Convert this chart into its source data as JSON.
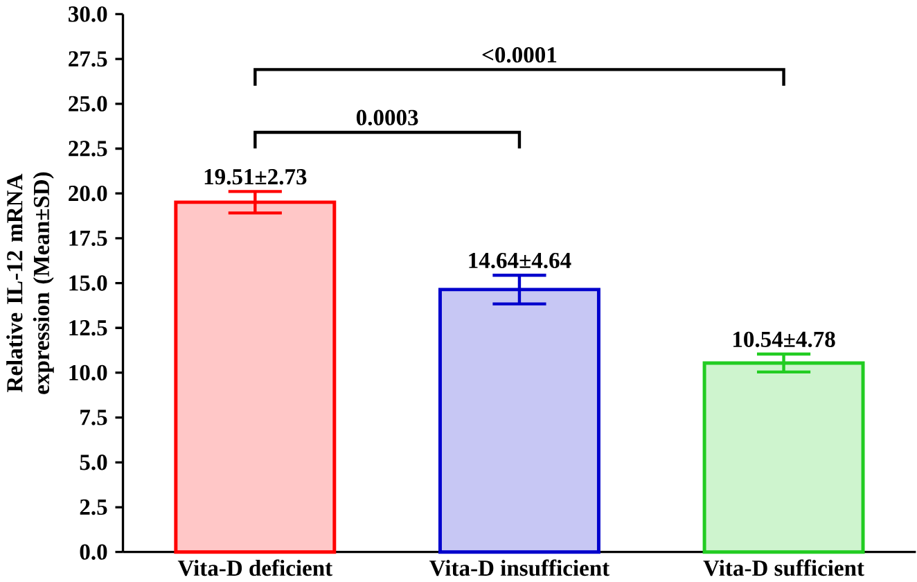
{
  "chart_data": {
    "type": "bar",
    "ylabel": "Relative IL-12 mRNA expression (Mean±SD)",
    "categories": [
      "Vita-D deficient",
      "Vita-D insufficient",
      "Vita-D sufficient"
    ],
    "values": [
      19.51,
      14.64,
      10.54
    ],
    "colors": [
      "#ff0000",
      "#0000cc",
      "#22cc22"
    ],
    "errors": [
      0.6,
      0.8,
      0.5
    ],
    "value_labels": [
      "19.51±2.73",
      "14.64±4.64",
      "10.54±4.78"
    ],
    "ylim": [
      0,
      30
    ],
    "yticks": [
      {
        "value": 0,
        "label": "0.0"
      },
      {
        "value": 2.5,
        "label": "2.5"
      },
      {
        "value": 5,
        "label": "5.0"
      },
      {
        "value": 7.5,
        "label": "7.5"
      },
      {
        "value": 10,
        "label": "10.0"
      },
      {
        "value": 12.5,
        "label": "12.5"
      },
      {
        "value": 15,
        "label": "15.0"
      },
      {
        "value": 17.5,
        "label": "17.5"
      },
      {
        "value": 20,
        "label": "20.0"
      },
      {
        "value": 22.5,
        "label": "22.5"
      },
      {
        "value": 25,
        "label": "25.0"
      },
      {
        "value": 27.5,
        "label": "27.5"
      },
      {
        "value": 30,
        "label": "30.0"
      }
    ],
    "annotations": [
      "0.0003",
      "<0.0001"
    ]
  }
}
